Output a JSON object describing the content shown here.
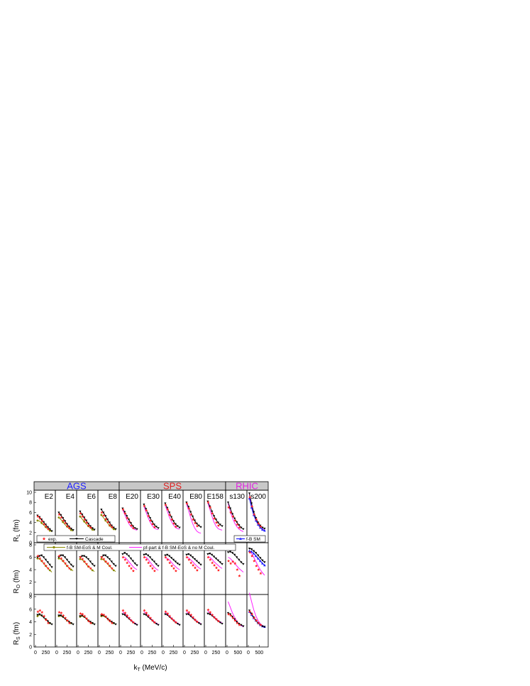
{
  "chart_data": {
    "type": "line",
    "groups": [
      {
        "name": "AGS",
        "color": "#2020ff"
      },
      {
        "name": "SPS",
        "color": "#e02020"
      },
      {
        "name": "RHIC",
        "color": "#e020e0"
      }
    ],
    "columns": [
      "E2",
      "E4",
      "E6",
      "E8",
      "E20",
      "E30",
      "E40",
      "E80",
      "E158",
      "s130",
      "s200"
    ],
    "rows": [
      {
        "ylabel_main": "R",
        "ylabel_sub": "L",
        "ylabel_unit": " (fm)",
        "ylim": [
          0,
          10
        ],
        "yticks": [
          "0",
          "2",
          "4",
          "6",
          "8",
          "10"
        ]
      },
      {
        "ylabel_main": "R",
        "ylabel_sub": "O",
        "ylabel_unit": " (fm)",
        "ylim": [
          0,
          8
        ],
        "yticks": [
          "0",
          "2",
          "4",
          "6",
          "8"
        ]
      },
      {
        "ylabel_main": "R",
        "ylabel_sub": "S",
        "ylabel_unit": " (fm)",
        "ylim": [
          0,
          8
        ],
        "yticks": [
          "0",
          "2",
          "4",
          "6",
          "8"
        ]
      }
    ],
    "xlabel_main": "k",
    "xlabel_sub": "T",
    "xlabel_unit": " (MeV/c)",
    "xticks_small": [
      "0",
      "250"
    ],
    "xticks_large": [
      "0",
      "500"
    ],
    "xlim_small": [
      0,
      450
    ],
    "xlim_large": [
      0,
      850
    ],
    "legend": {
      "exp": "exp.",
      "cascade": "Cascade",
      "fbsm": "f-B SM",
      "fbsm_eos": "f-B SM-EoS & M Coul.",
      "pf": "pf-part & f-B SM-EoS & no M Coul."
    },
    "colors": {
      "exp": "#ff2020",
      "cascade": "#000000",
      "eos": "#8a8a00",
      "eos_marker": "#8a8a00",
      "pf": "#ff20ff",
      "fbsm": "#1f1fff"
    },
    "series": {
      "cascade_x": [
        50,
        100,
        150,
        200,
        250,
        300,
        350,
        400
      ],
      "cascade_x_rhic": [
        50,
        150,
        250,
        350,
        450,
        550,
        650,
        750
      ],
      "RL": {
        "E2": {
          "cascade": [
            5.4,
            5.1,
            4.6,
            4.1,
            3.6,
            3.1,
            2.7,
            2.3
          ],
          "exp": [
            5.2,
            4.8,
            4.3,
            3.7,
            3.2,
            2.7
          ],
          "eos": [
            4.4,
            4.3,
            3.9,
            3.5,
            3.1,
            2.7,
            2.4,
            2.2
          ]
        },
        "E4": {
          "cascade": [
            6.0,
            5.5,
            4.9,
            4.3,
            3.7,
            3.2,
            2.8,
            2.5
          ],
          "exp": [
            5.6,
            5.0,
            4.4,
            3.9,
            3.3,
            2.9
          ],
          "eos": [
            5.0,
            4.6,
            4.1,
            3.6,
            3.2,
            2.8,
            2.5,
            2.3
          ]
        },
        "E6": {
          "cascade": [
            6.2,
            5.6,
            5.0,
            4.4,
            3.8,
            3.3,
            2.9,
            2.6
          ],
          "exp": [
            5.8,
            5.2,
            4.6,
            4.0,
            3.4,
            3.0
          ],
          "eos": [
            5.2,
            4.7,
            4.2,
            3.7,
            3.3,
            2.9,
            2.6,
            2.4
          ]
        },
        "E8": {
          "cascade": [
            6.6,
            6.0,
            5.3,
            4.6,
            4.0,
            3.4,
            3.0,
            2.7
          ],
          "exp": [
            6.0,
            5.4,
            4.7,
            4.1,
            3.5,
            3.1
          ],
          "eos": [
            5.5,
            5.0,
            4.4,
            3.9,
            3.4,
            3.0,
            2.7,
            2.5
          ]
        },
        "E20": {
          "cascade": [
            6.8,
            6.1,
            5.3,
            4.6,
            3.9,
            3.3,
            2.9,
            2.7
          ],
          "exp": [
            6.6,
            5.8,
            4.9,
            4.1,
            3.4,
            2.9
          ],
          "pf": [
            6.6,
            5.6,
            4.6,
            3.8,
            3.2,
            2.8,
            2.6,
            2.5
          ]
        },
        "E30": {
          "cascade": [
            7.6,
            6.7,
            5.8,
            4.9,
            4.2,
            3.6,
            3.2,
            2.9
          ],
          "exp": [
            7.3,
            6.4,
            5.3,
            4.4,
            3.7,
            3.1
          ],
          "pf": [
            7.2,
            6.1,
            5.0,
            4.1,
            3.4,
            2.9,
            2.7,
            2.6
          ]
        },
        "E40": {
          "cascade": [
            7.8,
            6.9,
            6.0,
            5.1,
            4.3,
            3.7,
            3.3,
            3.0
          ],
          "exp": [
            7.5,
            6.6,
            5.5,
            4.6,
            3.8,
            3.2
          ],
          "pf": [
            7.4,
            6.3,
            5.1,
            4.2,
            3.5,
            3.0,
            2.8,
            2.7
          ]
        },
        "E80": {
          "cascade": [
            8.0,
            7.1,
            6.1,
            5.2,
            4.4,
            3.8,
            3.4,
            3.1
          ],
          "exp": [
            7.8,
            6.8,
            5.6,
            4.6,
            3.9,
            3.3
          ],
          "pf": [
            7.7,
            6.4,
            5.0,
            3.8,
            2.9,
            2.3,
            2.0,
            1.9
          ]
        },
        "E158": {
          "cascade": [
            8.2,
            7.2,
            6.2,
            5.3,
            4.6,
            4.0,
            3.6,
            3.3
          ],
          "exp": [
            8.0,
            7.0,
            5.8,
            4.8,
            4.0,
            3.4
          ],
          "pf": [
            7.9,
            6.6,
            5.3,
            4.1,
            3.3,
            2.8,
            2.6,
            2.5
          ]
        },
        "s130": {
          "cascade": [
            8.0,
            6.8,
            5.7,
            4.8,
            4.1,
            3.5,
            3.0,
            2.7
          ],
          "exp": [
            7.0,
            6.0,
            5.2,
            4.4,
            3.6,
            3.0
          ],
          "pf": [
            7.8,
            6.2,
            4.9,
            3.9,
            3.2,
            2.7,
            2.4,
            2.2
          ]
        },
        "s200": {
          "cascade": [
            9.8,
            7.8,
            6.1,
            4.9,
            4.0,
            3.4,
            3.0,
            2.8
          ],
          "exp": [
            9.0,
            7.2,
            5.6,
            4.6,
            3.8,
            3.2
          ],
          "pf": [
            9.6,
            7.4,
            5.6,
            4.4,
            3.6,
            3.0,
            2.7,
            2.5
          ],
          "fbsm": [
            8.8,
            7.0,
            5.5,
            4.4,
            3.6,
            3.0,
            2.6,
            2.4
          ]
        }
      },
      "RO": {
        "E2": {
          "cascade": [
            6.0,
            6.2,
            6.3,
            6.0,
            5.6,
            5.2,
            4.8,
            4.4
          ],
          "exp": [
            6.2,
            5.8,
            5.4,
            5.0,
            4.6,
            4.2
          ],
          "eos": [
            5.8,
            5.7,
            5.4,
            5.0,
            4.6,
            4.2,
            3.9,
            3.6
          ]
        },
        "E4": {
          "cascade": [
            6.0,
            6.3,
            6.3,
            6.0,
            5.6,
            5.2,
            4.8,
            4.5
          ],
          "exp": [
            6.2,
            5.8,
            5.4,
            5.0,
            4.6,
            4.2
          ],
          "eos": [
            5.8,
            5.7,
            5.4,
            5.0,
            4.6,
            4.3,
            4.0,
            3.8
          ]
        },
        "E6": {
          "cascade": [
            6.0,
            6.2,
            6.2,
            6.0,
            5.7,
            5.3,
            4.9,
            4.6
          ],
          "exp": [
            6.0,
            5.7,
            5.3,
            4.9,
            4.5,
            4.2
          ],
          "eos": [
            5.7,
            5.6,
            5.3,
            4.9,
            4.5,
            4.2,
            3.9,
            3.7
          ]
        },
        "E8": {
          "cascade": [
            6.0,
            6.3,
            6.3,
            6.0,
            5.7,
            5.3,
            4.9,
            4.6
          ],
          "exp": [
            6.0,
            5.7,
            5.3,
            5.0,
            4.6,
            4.2
          ],
          "eos": [
            5.7,
            5.6,
            5.3,
            4.9,
            4.6,
            4.2,
            3.9,
            3.7
          ]
        },
        "E20": {
          "cascade": [
            6.5,
            6.7,
            6.5,
            6.2,
            5.8,
            5.4,
            5.0,
            4.7
          ],
          "exp": [
            6.0,
            5.6,
            5.1,
            4.6,
            4.2,
            3.8
          ],
          "pf": [
            6.0,
            6.0,
            5.7,
            5.3,
            4.9,
            4.5,
            4.2,
            4.0
          ]
        },
        "E30": {
          "cascade": [
            6.4,
            6.5,
            6.3,
            6.0,
            5.6,
            5.3,
            4.9,
            4.6
          ],
          "exp": [
            6.0,
            5.6,
            5.1,
            4.6,
            4.2,
            3.8
          ],
          "pf": [
            6.0,
            6.0,
            5.7,
            5.2,
            4.8,
            4.4,
            4.1,
            3.9
          ]
        },
        "E40": {
          "cascade": [
            6.3,
            6.4,
            6.2,
            5.9,
            5.6,
            5.3,
            5.0,
            4.8
          ],
          "exp": [
            6.0,
            5.6,
            5.1,
            4.6,
            4.2,
            3.8
          ],
          "pf": [
            5.9,
            5.8,
            5.6,
            5.2,
            4.8,
            4.5,
            4.2,
            4.0
          ]
        },
        "E80": {
          "cascade": [
            6.4,
            6.5,
            6.3,
            6.0,
            5.7,
            5.4,
            5.1,
            4.8
          ],
          "exp": [
            6.0,
            5.6,
            5.1,
            4.7,
            4.3,
            3.9
          ],
          "pf": [
            6.0,
            5.9,
            5.6,
            5.3,
            4.9,
            4.6,
            4.3,
            4.1
          ]
        },
        "E158": {
          "cascade": [
            6.5,
            6.6,
            6.4,
            6.1,
            5.8,
            5.5,
            5.2,
            4.9
          ],
          "exp": [
            6.0,
            5.6,
            5.1,
            4.7,
            4.3,
            3.9
          ],
          "pf": [
            6.1,
            6.0,
            5.7,
            5.3,
            5.0,
            4.7,
            4.4,
            4.2
          ]
        },
        "s130": {
          "cascade": [
            6.8,
            6.9,
            6.7,
            6.4,
            6.0,
            5.6,
            5.2,
            4.9
          ],
          "exp": [
            5.4,
            5.0,
            5.3,
            5.0,
            4.0,
            3.0
          ],
          "pf": [
            6.0,
            5.8,
            5.4,
            5.0,
            4.6,
            4.2,
            3.9,
            3.6
          ]
        },
        "s200": {
          "cascade": [
            7.4,
            7.3,
            7.0,
            6.7,
            6.3,
            5.9,
            5.5,
            5.2
          ],
          "exp": [
            6.8,
            6.2,
            5.4,
            4.6,
            4.0,
            3.4
          ],
          "pf": [
            7.0,
            6.6,
            6.0,
            5.3,
            4.6,
            4.0,
            3.5,
            3.1
          ],
          "fbsm": [
            7.0,
            6.9,
            6.6,
            6.2,
            5.8,
            5.4,
            5.0,
            4.7
          ]
        }
      },
      "RS": {
        "E2": {
          "cascade": [
            5.1,
            5.2,
            5.0,
            4.7,
            4.4,
            4.1,
            3.8,
            3.6
          ],
          "exp": [
            5.6,
            5.8,
            5.5,
            4.9,
            4.3,
            3.8
          ],
          "eos": [
            4.9,
            5.1,
            5.0,
            4.7,
            4.4,
            4.1,
            3.8,
            3.6
          ]
        },
        "E4": {
          "cascade": [
            5.0,
            5.0,
            4.8,
            4.5,
            4.2,
            4.0,
            3.8,
            3.6
          ],
          "exp": [
            5.5,
            5.4,
            5.0,
            4.6,
            4.2,
            3.8
          ],
          "eos": [
            4.9,
            4.9,
            4.8,
            4.5,
            4.2,
            4.0,
            3.8,
            3.6
          ]
        },
        "E6": {
          "cascade": [
            4.9,
            5.0,
            4.8,
            4.5,
            4.2,
            4.0,
            3.8,
            3.6
          ],
          "exp": [
            5.3,
            5.2,
            4.9,
            4.5,
            4.1,
            3.8
          ],
          "eos": [
            4.8,
            4.9,
            4.8,
            4.5,
            4.2,
            4.0,
            3.8,
            3.6
          ]
        },
        "E8": {
          "cascade": [
            5.0,
            5.0,
            4.8,
            4.5,
            4.2,
            4.0,
            3.8,
            3.6
          ],
          "exp": [
            5.2,
            5.1,
            4.8,
            4.4,
            4.1,
            3.8
          ],
          "eos": [
            4.9,
            4.9,
            4.8,
            4.5,
            4.2,
            4.0,
            3.8,
            3.6
          ]
        },
        "E20": {
          "cascade": [
            5.2,
            5.1,
            4.8,
            4.5,
            4.2,
            3.9,
            3.7,
            3.5
          ],
          "exp": [
            5.8,
            5.4,
            5.0,
            4.6,
            4.2,
            3.9
          ],
          "pf": [
            5.6,
            5.3,
            5.0,
            4.6,
            4.3,
            4.0,
            3.8,
            3.6
          ]
        },
        "E30": {
          "cascade": [
            5.2,
            5.1,
            4.8,
            4.5,
            4.2,
            3.9,
            3.7,
            3.5
          ],
          "exp": [
            5.8,
            5.4,
            5.0,
            4.6,
            4.2,
            3.9
          ],
          "pf": [
            5.6,
            5.3,
            5.0,
            4.6,
            4.3,
            4.0,
            3.8,
            3.6
          ]
        },
        "E40": {
          "cascade": [
            5.2,
            5.1,
            4.8,
            4.5,
            4.2,
            3.9,
            3.7,
            3.5
          ],
          "exp": [
            5.6,
            5.3,
            4.9,
            4.5,
            4.2,
            3.9
          ],
          "pf": [
            5.5,
            5.2,
            4.9,
            4.6,
            4.3,
            4.0,
            3.8,
            3.6
          ]
        },
        "E80": {
          "cascade": [
            5.2,
            5.2,
            4.9,
            4.6,
            4.3,
            4.0,
            3.8,
            3.6
          ],
          "exp": [
            5.8,
            5.5,
            5.1,
            4.7,
            4.3,
            4.0
          ],
          "pf": [
            5.6,
            5.3,
            5.0,
            4.7,
            4.4,
            4.1,
            3.9,
            3.7
          ]
        },
        "E158": {
          "cascade": [
            5.3,
            5.2,
            5.0,
            4.7,
            4.4,
            4.1,
            3.9,
            3.7
          ],
          "exp": [
            5.9,
            5.5,
            5.1,
            4.7,
            4.4,
            4.1
          ],
          "pf": [
            5.7,
            5.4,
            5.1,
            4.8,
            4.5,
            4.2,
            4.0,
            3.8
          ]
        },
        "s130": {
          "cascade": [
            5.4,
            5.2,
            4.8,
            4.4,
            4.0,
            3.7,
            3.5,
            3.3
          ],
          "exp": [
            5.2,
            5.0,
            4.6,
            4.2,
            3.8,
            3.5
          ],
          "pf": [
            7.2,
            6.3,
            5.4,
            4.7,
            4.1,
            3.7,
            3.4,
            3.2
          ]
        },
        "s200": {
          "cascade": [
            5.8,
            5.3,
            4.7,
            4.2,
            3.8,
            3.5,
            3.3,
            3.2
          ],
          "exp": [
            5.6,
            5.2,
            4.6,
            4.2,
            3.8,
            3.5
          ],
          "pf": [
            8.6,
            7.2,
            5.9,
            4.9,
            4.2,
            3.7,
            3.4,
            3.2
          ],
          "fbsm": [
            5.6,
            5.1,
            4.6,
            4.2,
            3.8,
            3.5,
            3.3,
            3.2
          ]
        }
      }
    }
  }
}
